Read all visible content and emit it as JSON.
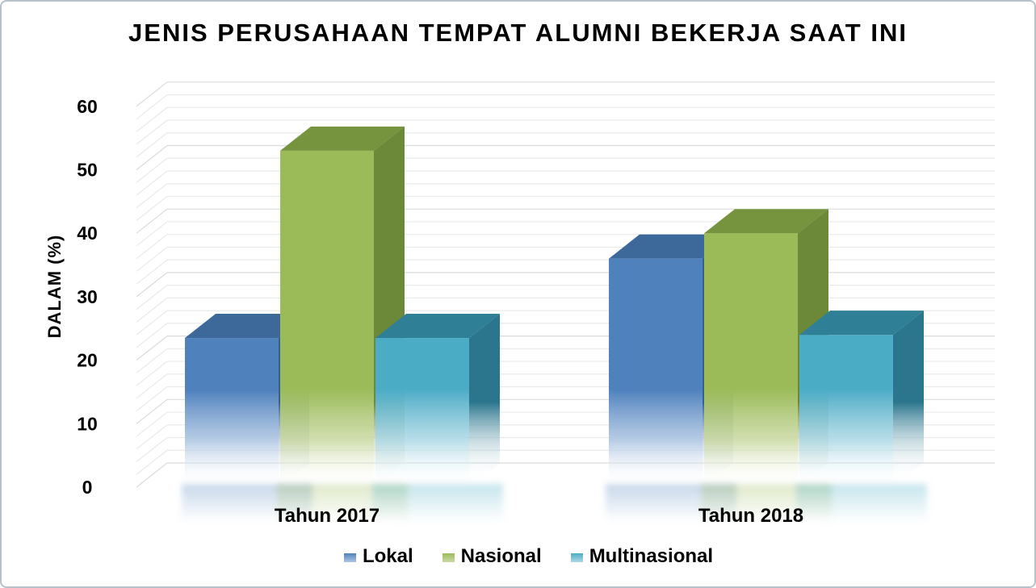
{
  "window": {
    "background": "#ffffff",
    "border_color": "#b7c1c9"
  },
  "chart_data": {
    "type": "bar",
    "variant": "3d-clustered-column",
    "title": "JENIS PERUSAHAAN TEMPAT ALUMNI BEKERJA SAAT INI",
    "ylabel": "DALAM (%)",
    "xlabel": "",
    "categories": [
      "Tahun 2017",
      "Tahun 2018"
    ],
    "series": [
      {
        "name": "Lokal",
        "values": [
          23.5,
          36
        ],
        "colors": {
          "front": "#4F81BD",
          "top": "#3C689A",
          "side": "#36608F",
          "light": "#AEC6E2"
        }
      },
      {
        "name": "Nasional",
        "values": [
          53,
          40
        ],
        "colors": {
          "front": "#9BBB59",
          "top": "#76933D",
          "side": "#6C8839",
          "light": "#CBDAA4"
        }
      },
      {
        "name": "Multinasional",
        "values": [
          23.5,
          24
        ],
        "colors": {
          "front": "#4BACC6",
          "top": "#2F8097",
          "side": "#2B768D",
          "light": "#AFD9E6"
        }
      }
    ],
    "ylim": [
      0,
      60
    ],
    "y_major_unit": 10,
    "y_minor_unit": 2,
    "y_ticks": [
      "0",
      "10",
      "20",
      "30",
      "40",
      "50",
      "60"
    ],
    "legend_position": "bottom",
    "grid": "horizontal-minor",
    "gridline_color": "#E9E9E9",
    "gridline_major_color": "#DBDBDB",
    "text_color": "#000000"
  }
}
